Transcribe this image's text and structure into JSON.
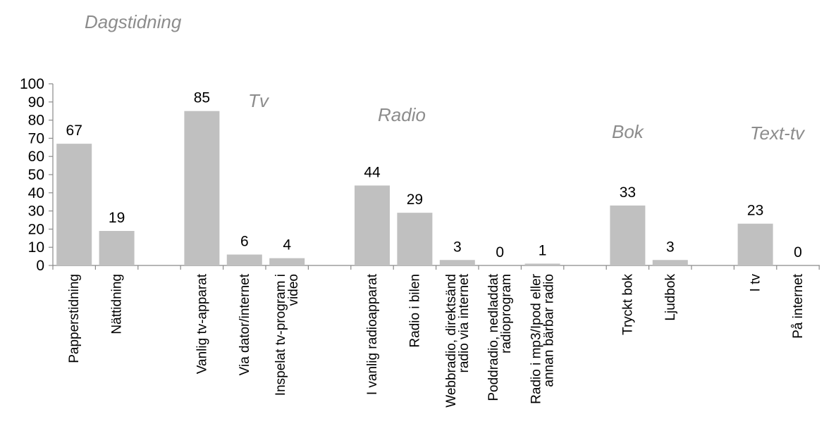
{
  "chart_data": {
    "type": "bar",
    "ylim": [
      0,
      100
    ],
    "yticks": [
      0,
      10,
      20,
      30,
      40,
      50,
      60,
      70,
      80,
      90,
      100
    ],
    "grid": false,
    "bar_color": "#c0c0c0",
    "group_label_color": "#8c8c8c",
    "groups": [
      {
        "label": "Dagstidning",
        "categories": [
          {
            "label": "Papperstidning",
            "value": 67
          },
          {
            "label": "Nättidning",
            "value": 19
          }
        ]
      },
      {
        "label": "Tv",
        "categories": [
          {
            "label": "Vanlig tv-apparat",
            "value": 85
          },
          {
            "label": "Via dator/internet",
            "value": 6
          },
          {
            "label": "Inspelat tv-program i video",
            "value": 4
          }
        ]
      },
      {
        "label": "Radio",
        "categories": [
          {
            "label": "I vanlig radioapparat",
            "value": 44
          },
          {
            "label": "Radio i bilen",
            "value": 29
          },
          {
            "label": "Webbradio, direktsänd radio via internet",
            "value": 3
          },
          {
            "label": "Poddradio, nedladdat radioprogram",
            "value": 0
          },
          {
            "label": "Radio i mp3/Ipod eller annan bärbar radio",
            "value": 1
          }
        ]
      },
      {
        "label": "Bok",
        "categories": [
          {
            "label": "Tryckt bok",
            "value": 33
          },
          {
            "label": "Ljudbok",
            "value": 3
          }
        ]
      },
      {
        "label": "Text-tv",
        "categories": [
          {
            "label": "I tv",
            "value": 23
          },
          {
            "label": "På internet",
            "value": 0
          }
        ]
      }
    ]
  }
}
